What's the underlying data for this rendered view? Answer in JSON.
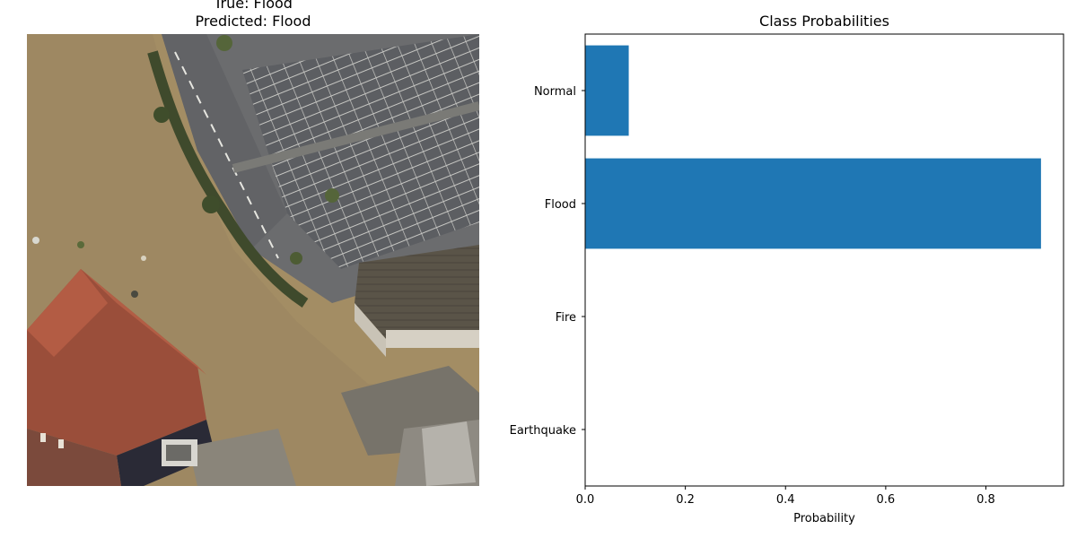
{
  "image_panel": {
    "true_label": "True: Flood",
    "predicted_label": "Predicted: Flood"
  },
  "chart_data": {
    "type": "bar",
    "orientation": "horizontal",
    "title": "Class Probabilities",
    "xlabel": "Probability",
    "ylabel": "",
    "categories": [
      "Earthquake",
      "Fire",
      "Flood",
      "Normal"
    ],
    "values": [
      0.0,
      0.0,
      0.91,
      0.087
    ],
    "xlim": [
      0,
      0.955
    ],
    "xticks": [
      0.0,
      0.2,
      0.4,
      0.6,
      0.8
    ],
    "xtick_labels": [
      "0.0",
      "0.2",
      "0.4",
      "0.6",
      "0.8"
    ],
    "bar_color": "#1f77b4",
    "grid": false,
    "legend": "none"
  }
}
